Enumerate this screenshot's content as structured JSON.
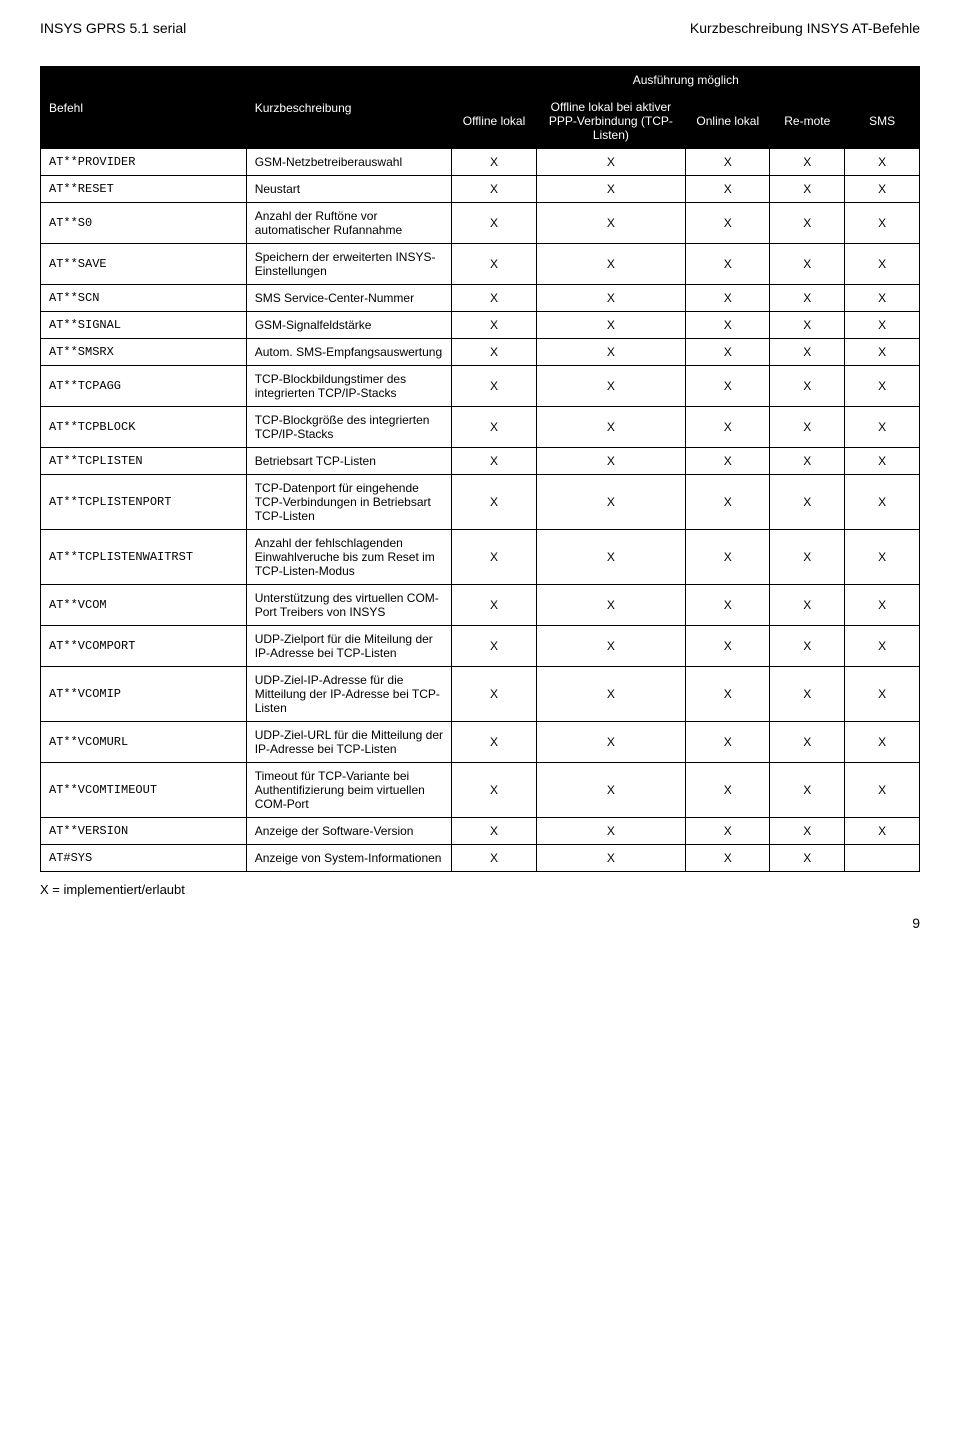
{
  "header": {
    "left": "INSYS GPRS 5.1 serial",
    "right": "Kurzbeschreibung INSYS AT-Befehle"
  },
  "table": {
    "super_header": "Ausführung möglich",
    "head": {
      "befehl": "Befehl",
      "kurz": "Kurzbeschreibung",
      "offline_lokal": "Offline lokal",
      "offline_ppp": "Offline lokal bei aktiver PPP-Verbindung (TCP-Listen)",
      "online_lokal": "Online lokal",
      "remote": "Re-mote",
      "sms": "SMS"
    },
    "rows": [
      {
        "cmd": "AT**PROVIDER",
        "desc": "GSM-Netzbetreiberauswahl",
        "c": [
          "X",
          "X",
          "X",
          "X",
          "X"
        ]
      },
      {
        "cmd": "AT**RESET",
        "desc": "Neustart",
        "c": [
          "X",
          "X",
          "X",
          "X",
          "X"
        ]
      },
      {
        "cmd": "AT**S0",
        "desc": "Anzahl der Ruftöne vor automatischer Rufannahme",
        "c": [
          "X",
          "X",
          "X",
          "X",
          "X"
        ]
      },
      {
        "cmd": "AT**SAVE",
        "desc": "Speichern der erweiterten INSYS-Einstellungen",
        "c": [
          "X",
          "X",
          "X",
          "X",
          "X"
        ]
      },
      {
        "cmd": "AT**SCN",
        "desc": "SMS Service-Center-Nummer",
        "c": [
          "X",
          "X",
          "X",
          "X",
          "X"
        ]
      },
      {
        "cmd": "AT**SIGNAL",
        "desc": "GSM-Signalfeldstärke",
        "c": [
          "X",
          "X",
          "X",
          "X",
          "X"
        ]
      },
      {
        "cmd": "AT**SMSRX",
        "desc": "Autom. SMS-Empfangsauswertung",
        "c": [
          "X",
          "X",
          "X",
          "X",
          "X"
        ]
      },
      {
        "cmd": "AT**TCPAGG",
        "desc": "TCP-Blockbildungstimer des integrierten TCP/IP-Stacks",
        "c": [
          "X",
          "X",
          "X",
          "X",
          "X"
        ]
      },
      {
        "cmd": "AT**TCPBLOCK",
        "desc": "TCP-Blockgröße des integrierten TCP/IP-Stacks",
        "c": [
          "X",
          "X",
          "X",
          "X",
          "X"
        ]
      },
      {
        "cmd": "AT**TCPLISTEN",
        "desc": "Betriebsart TCP-Listen",
        "c": [
          "X",
          "X",
          "X",
          "X",
          "X"
        ]
      },
      {
        "cmd": "AT**TCPLISTENPORT",
        "desc": "TCP-Datenport für eingehende TCP-Verbindungen in Betriebsart TCP-Listen",
        "c": [
          "X",
          "X",
          "X",
          "X",
          "X"
        ]
      },
      {
        "cmd": "AT**TCPLISTENWAITRST",
        "desc": "Anzahl der fehlschlagenden Einwahlveruche bis zum Reset im TCP-Listen-Modus",
        "c": [
          "X",
          "X",
          "X",
          "X",
          "X"
        ]
      },
      {
        "cmd": "AT**VCOM",
        "desc": "Unterstützung des virtuellen COM-Port Treibers von INSYS",
        "c": [
          "X",
          "X",
          "X",
          "X",
          "X"
        ]
      },
      {
        "cmd": "AT**VCOMPORT",
        "desc": "UDP-Zielport für die Miteilung der IP-Adresse bei TCP-Listen",
        "c": [
          "X",
          "X",
          "X",
          "X",
          "X"
        ]
      },
      {
        "cmd": "AT**VCOMIP",
        "desc": "UDP-Ziel-IP-Adresse für die Mitteilung der IP-Adresse bei TCP-Listen",
        "c": [
          "X",
          "X",
          "X",
          "X",
          "X"
        ]
      },
      {
        "cmd": "AT**VCOMURL",
        "desc": "UDP-Ziel-URL für die Mitteilung der IP-Adresse bei TCP-Listen",
        "c": [
          "X",
          "X",
          "X",
          "X",
          "X"
        ]
      },
      {
        "cmd": "AT**VCOMTIMEOUT",
        "desc": "Timeout für TCP-Variante bei Authentifizierung beim virtuellen COM-Port",
        "c": [
          "X",
          "X",
          "X",
          "X",
          "X"
        ]
      },
      {
        "cmd": "AT**VERSION",
        "desc": "Anzeige der Software-Version",
        "c": [
          "X",
          "X",
          "X",
          "X",
          "X"
        ]
      },
      {
        "cmd": "AT#SYS",
        "desc": "Anzeige von System-Informationen",
        "c": [
          "X",
          "X",
          "X",
          "X",
          ""
        ]
      }
    ]
  },
  "footer_note": "X = implementiert/erlaubt",
  "page_number": "9",
  "colors": {
    "header_bg": "#000000",
    "header_fg": "#ffffff",
    "border": "#000000",
    "text": "#000000",
    "background": "#ffffff"
  }
}
